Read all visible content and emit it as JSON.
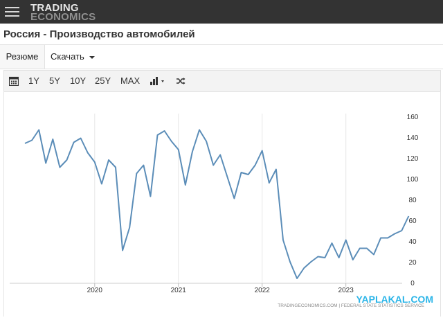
{
  "header": {
    "logo_line1": "TRADING",
    "logo_line2": "ECONOMICS",
    "menu_icon": "hamburger-icon"
  },
  "page": {
    "title": "Россия - Производство автомобилей"
  },
  "tabs": {
    "resume": "Резюме",
    "download": "Скачать"
  },
  "toolbar": {
    "calendar_icon": "calendar-icon",
    "ranges": [
      "1Y",
      "5Y",
      "10Y",
      "25Y",
      "MAX"
    ],
    "chart_type_icon": "bar-chart-icon",
    "compare_icon": "shuffle-icon"
  },
  "chart_data": {
    "type": "line",
    "title": "",
    "xlabel": "",
    "ylabel": "",
    "ylim": [
      0,
      160
    ],
    "yticks": [
      0,
      20,
      40,
      60,
      80,
      100,
      120,
      140,
      160
    ],
    "xtick_labels": [
      "2020",
      "2021",
      "2022",
      "2023"
    ],
    "grid": "vertical at year marks",
    "line_color": "#5b8db8",
    "series": [
      {
        "name": "",
        "points": [
          [
            "2019-03",
            134
          ],
          [
            "2019-04",
            137
          ],
          [
            "2019-05",
            147
          ],
          [
            "2019-06",
            115
          ],
          [
            "2019-07",
            138
          ],
          [
            "2019-08",
            111
          ],
          [
            "2019-09",
            118
          ],
          [
            "2019-10",
            135
          ],
          [
            "2019-11",
            139
          ],
          [
            "2019-12",
            125
          ],
          [
            "2020-01",
            116
          ],
          [
            "2020-02",
            95
          ],
          [
            "2020-03",
            118
          ],
          [
            "2020-04",
            111
          ],
          [
            "2020-05",
            31
          ],
          [
            "2020-06",
            53
          ],
          [
            "2020-07",
            105
          ],
          [
            "2020-08",
            113
          ],
          [
            "2020-09",
            83
          ],
          [
            "2020-10",
            142
          ],
          [
            "2020-11",
            146
          ],
          [
            "2020-12",
            136
          ],
          [
            "2021-01",
            128
          ],
          [
            "2021-02",
            94
          ],
          [
            "2021-03",
            126
          ],
          [
            "2021-04",
            147
          ],
          [
            "2021-05",
            136
          ],
          [
            "2021-06",
            113
          ],
          [
            "2021-07",
            123
          ],
          [
            "2021-08",
            102
          ],
          [
            "2021-09",
            81
          ],
          [
            "2021-10",
            106
          ],
          [
            "2021-11",
            104
          ],
          [
            "2021-12",
            113
          ],
          [
            "2022-01",
            127
          ],
          [
            "2022-02",
            96
          ],
          [
            "2022-03",
            109
          ],
          [
            "2022-04",
            41
          ],
          [
            "2022-05",
            20
          ],
          [
            "2022-06",
            4
          ],
          [
            "2022-07",
            14
          ],
          [
            "2022-08",
            20
          ],
          [
            "2022-09",
            25
          ],
          [
            "2022-10",
            24
          ],
          [
            "2022-11",
            38
          ],
          [
            "2022-12",
            24
          ],
          [
            "2023-01",
            41
          ],
          [
            "2023-02",
            22
          ],
          [
            "2023-03",
            33
          ],
          [
            "2023-04",
            33
          ],
          [
            "2023-05",
            27
          ],
          [
            "2023-06",
            43
          ],
          [
            "2023-07",
            43
          ],
          [
            "2023-08",
            47
          ],
          [
            "2023-09",
            50
          ],
          [
            "2023-10",
            64
          ]
        ]
      }
    ]
  },
  "watermark": {
    "site": "YAPLAKAL.COM"
  },
  "source": {
    "text": "TRADINGECONOMICS.COM | FEDERAL STATE STATISTICS SERVICE"
  }
}
